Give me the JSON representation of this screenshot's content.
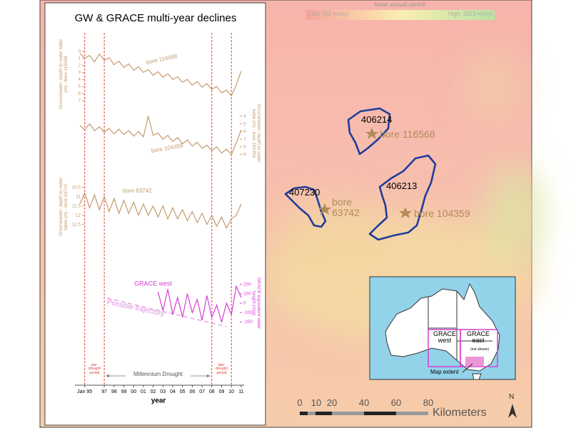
{
  "chart_data": {
    "type": "line",
    "title": "GW & GRACE multi-year declines",
    "xlabel": "year",
    "x": [
      1994.5,
      1995,
      1995.5,
      1996,
      1996.5,
      1997,
      1997.5,
      1998,
      1998.5,
      1999,
      1999.5,
      2000,
      2000.5,
      2001,
      2001.5,
      2002,
      2002.5,
      2003,
      2003.5,
      2004,
      2004.5,
      2005,
      2005.5,
      2006,
      2006.5,
      2007,
      2007.5,
      2008,
      2008.5,
      2009,
      2009.5,
      2010,
      2010.5,
      2011
    ],
    "xlim": [
      1994,
      2011.3
    ],
    "xticks": [
      {
        "value": 1995,
        "label": "Jan 95"
      },
      {
        "value": 1997,
        "label": "97"
      },
      {
        "value": 1998,
        "label": "98"
      },
      {
        "value": 1999,
        "label": "99"
      },
      {
        "value": 2000,
        "label": "00"
      },
      {
        "value": 2001,
        "label": "01"
      },
      {
        "value": 2002,
        "label": "02"
      },
      {
        "value": 2003,
        "label": "03"
      },
      {
        "value": 2004,
        "label": "04"
      },
      {
        "value": 2005,
        "label": "05"
      },
      {
        "value": 2006,
        "label": "06"
      },
      {
        "value": 2007,
        "label": "07"
      },
      {
        "value": 2008,
        "label": "08"
      },
      {
        "value": 2009,
        "label": "09"
      },
      {
        "value": 2010,
        "label": "10"
      },
      {
        "value": 2011,
        "label": "11"
      }
    ],
    "periods": [
      {
        "start": 1995,
        "end": 1997,
        "label": "pre-drought period"
      },
      {
        "start": 1997,
        "end": 2008,
        "label": "Millennium Drought"
      },
      {
        "start": 2008,
        "end": 2010,
        "label": "late-drought period"
      }
    ],
    "annotation": "Possible trajectory",
    "series": [
      {
        "name": "bore 116568",
        "color": "#c49a6c",
        "ylabel": "Groundwater: depth to water table (m) - bore 116568",
        "axis_side": "left",
        "inverted": true,
        "ylim": [
          -1,
          7.5
        ],
        "yticks": [
          0,
          1,
          2,
          3,
          4,
          5,
          6,
          7
        ],
        "values": [
          0.3,
          1.0,
          0.6,
          1.5,
          0.4,
          1.3,
          0.9,
          1.9,
          1.4,
          2.3,
          1.8,
          2.7,
          2.2,
          3.0,
          2.6,
          3.4,
          2.9,
          3.7,
          3.2,
          4.0,
          3.6,
          4.4,
          4.0,
          4.8,
          4.3,
          5.1,
          4.6,
          5.4,
          5.0,
          5.9,
          5.5,
          6.3,
          4.8,
          2.8
        ]
      },
      {
        "name": "bore 104359",
        "color": "#c49a6c",
        "ylabel": "Groundwater: depth to water table (m) - bore 104359",
        "axis_side": "right",
        "inverted": true,
        "ylim": [
          3,
          9.5
        ],
        "yticks": [
          4,
          5,
          6,
          7,
          8,
          9
        ],
        "values": [
          5.2,
          5.8,
          5.0,
          5.9,
          5.4,
          6.1,
          5.6,
          6.3,
          5.7,
          6.4,
          5.9,
          6.6,
          6.0,
          6.7,
          4.0,
          6.5,
          6.2,
          7.0,
          6.5,
          7.3,
          6.8,
          7.6,
          7.1,
          7.9,
          7.4,
          8.2,
          7.8,
          8.5,
          8.0,
          8.8,
          8.3,
          9.0,
          7.5,
          5.8
        ]
      },
      {
        "name": "bore 63742",
        "color": "#c49a6c",
        "ylabel": "Groundwater: depth to water table (m) - bore 63742",
        "axis_side": "left",
        "inverted": true,
        "ylim": [
          10.2,
          12.9
        ],
        "yticks": [
          10.5,
          11,
          11.5,
          12,
          12.5
        ],
        "values": [
          11.4,
          10.8,
          11.6,
          10.9,
          11.7,
          11.0,
          11.8,
          11.1,
          11.9,
          11.2,
          11.9,
          11.3,
          12.0,
          11.4,
          12.0,
          11.5,
          12.1,
          11.5,
          12.2,
          11.6,
          12.2,
          11.7,
          12.3,
          11.8,
          12.4,
          11.9,
          12.5,
          12.0,
          12.6,
          12.1,
          12.7,
          12.2,
          12.0,
          11.4
        ]
      },
      {
        "name": "GRACE west",
        "color": "#d63fd6",
        "ylabel": "GRACE equivalent water height (mm)",
        "axis_side": "right",
        "inverted": false,
        "ylim": [
          -250,
          250
        ],
        "yticks": [
          200,
          100,
          0,
          -100,
          -200
        ],
        "values": [
          null,
          null,
          null,
          null,
          null,
          null,
          null,
          null,
          null,
          null,
          null,
          null,
          null,
          null,
          null,
          null,
          120,
          -80,
          150,
          -120,
          60,
          -150,
          100,
          -100,
          40,
          -180,
          80,
          -150,
          -20,
          -200,
          0,
          -120,
          180,
          60
        ]
      }
    ]
  },
  "map": {
    "legend": {
      "title": "Mean annual rainfall",
      "low": "Low: 361 mm/yr",
      "high": "High: 2023 mm/yr"
    },
    "catchments": [
      "406214",
      "406213",
      "407230"
    ],
    "bores": [
      "bore 116568",
      "bore 104359",
      "bore 63742"
    ],
    "inset": {
      "grace_west": "GRACE west",
      "grace_east": "GRACE east",
      "note": "(not shown)",
      "extent": "Map extent"
    },
    "scale_bar": {
      "labels": [
        "0",
        "10",
        "20",
        "40",
        "60",
        "80"
      ],
      "unit": "Kilometers"
    },
    "north": "N"
  }
}
